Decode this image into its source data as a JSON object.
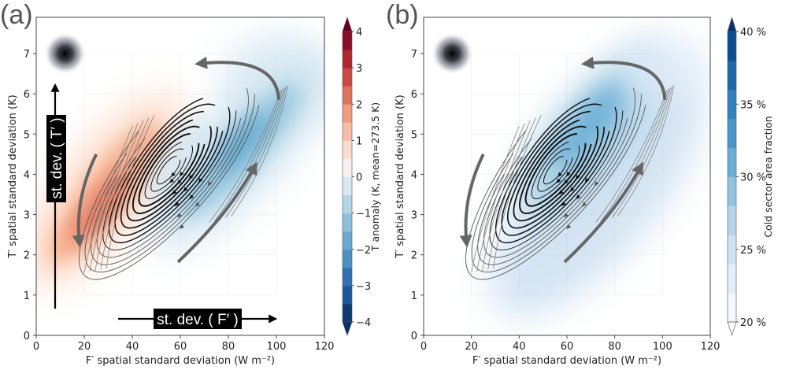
{
  "figure": {
    "panels": [
      "(a)",
      "(b)"
    ]
  },
  "chart_data": [
    {
      "type": "heatmap",
      "panel_label": "(a)",
      "title": "",
      "xlabel": "F′ spatial standard deviation (W m⁻²)",
      "ylabel": "T′ spatial standard deviation (K)",
      "xlim": [
        0,
        120
      ],
      "ylim": [
        0,
        7.9
      ],
      "xticks": [
        "0",
        "20",
        "40",
        "60",
        "80",
        "100",
        "120"
      ],
      "xtick_values": [
        0,
        20,
        40,
        60,
        80,
        100,
        120
      ],
      "yticks": [
        "0",
        "1",
        "2",
        "3",
        "4",
        "5",
        "6",
        "7"
      ],
      "ytick_values": [
        0,
        1,
        2,
        3,
        4,
        5,
        6,
        7
      ],
      "grid": true,
      "colorbar": {
        "label": "T anomaly (K, mean=273.5 K)",
        "ticks": [
          "4",
          "3",
          "2",
          "1",
          "0",
          "−1",
          "−2",
          "−3",
          "−4"
        ],
        "tick_values": [
          4,
          3,
          2,
          1,
          0,
          -1,
          -2,
          -3,
          -4
        ],
        "range": [
          -4,
          4
        ],
        "extend": "both",
        "colormap": "RdBu_r",
        "colors": [
          "#053061",
          "#2166ac",
          "#4393c3",
          "#92c5de",
          "#d1e5f0",
          "#f7f7f7",
          "#fddbc7",
          "#f4a582",
          "#d6604d",
          "#b2182b",
          "#67001f"
        ]
      },
      "field_features": [
        {
          "name": "warm anomaly",
          "sign": "positive",
          "center": [
            28,
            3.6
          ],
          "peak": 2.2
        },
        {
          "name": "cold anomaly",
          "sign": "negative",
          "center": [
            85,
            4.6
          ],
          "peak": -1.8
        }
      ],
      "vortex_center": [
        55,
        4.1
      ],
      "annotations": [
        {
          "text": "st. dev. ( T′ )",
          "orientation": "vertical",
          "arrow": "up"
        },
        {
          "text": "st. dev. ( F′ )",
          "orientation": "horizontal",
          "arrow": "right"
        }
      ],
      "kernel_marker_at": [
        12,
        7.0
      ]
    },
    {
      "type": "heatmap",
      "panel_label": "(b)",
      "title": "",
      "xlabel": "F′ spatial standard deviation (W m⁻²)",
      "ylabel": "T′ spatial standard deviation (K)",
      "xlim": [
        0,
        120
      ],
      "ylim": [
        0,
        7.9
      ],
      "xticks": [
        "0",
        "20",
        "40",
        "60",
        "80",
        "100",
        "120"
      ],
      "xtick_values": [
        0,
        20,
        40,
        60,
        80,
        100,
        120
      ],
      "yticks": [
        "0",
        "1",
        "2",
        "3",
        "4",
        "5",
        "6",
        "7"
      ],
      "ytick_values": [
        0,
        1,
        2,
        3,
        4,
        5,
        6,
        7
      ],
      "grid": true,
      "colorbar": {
        "label": "Cold sector area fraction",
        "ticks": [
          "40 %",
          "35 %",
          "30 %",
          "25 %",
          "20 %"
        ],
        "tick_values": [
          40,
          35,
          30,
          25,
          20
        ],
        "range": [
          20,
          40
        ],
        "extend": "both",
        "colormap": "Blues",
        "colors": [
          "#f7fbff",
          "#deebf7",
          "#c6dbef",
          "#9ecae1",
          "#6baed6",
          "#4292c6",
          "#2171b5",
          "#08519c",
          "#08306b"
        ]
      },
      "field_features": [
        {
          "name": "high cold-sector fraction",
          "center": [
            85,
            4.8
          ],
          "peak": 33
        }
      ],
      "vortex_center": [
        55,
        4.1
      ],
      "kernel_marker_at": [
        12,
        7.0
      ]
    }
  ]
}
